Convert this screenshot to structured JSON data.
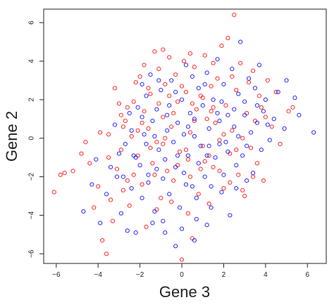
{
  "chart_data": {
    "type": "scatter",
    "xlabel": "Gene 3",
    "ylabel": "Gene 2",
    "xlim": [
      -6.6,
      6.9
    ],
    "ylim": [
      -6.5,
      6.7
    ],
    "x_ticks": [
      -6,
      -4,
      -2,
      0,
      2,
      4,
      6
    ],
    "y_ticks": [
      -6,
      -4,
      -2,
      0,
      2,
      4,
      6
    ],
    "x_tick_labels": [
      "−6",
      "−4",
      "−2",
      "0",
      "2",
      "4",
      "6"
    ],
    "y_tick_labels": [
      "−6",
      "−4",
      "−2",
      "0",
      "2",
      "4",
      "6"
    ],
    "grid": false,
    "legend": "none",
    "marker": "open-circle",
    "series": [
      {
        "color": "#ff2a2a",
        "points": [
          [
            -6.1,
            -2.8
          ],
          [
            -5.8,
            -1.9
          ],
          [
            -5.6,
            -1.8
          ],
          [
            -5.2,
            -1.7
          ],
          [
            -4.8,
            -0.8
          ],
          [
            -4.6,
            -0.2
          ],
          [
            -4.4,
            -1.3
          ],
          [
            -4.2,
            -3.6
          ],
          [
            -4.0,
            -2.5
          ],
          [
            -3.9,
            0.3
          ],
          [
            -3.8,
            -5.3
          ],
          [
            -3.6,
            -6.0
          ],
          [
            -3.5,
            -1.0
          ],
          [
            -3.4,
            -3.2
          ],
          [
            -3.3,
            -4.3
          ],
          [
            -3.2,
            2.6
          ],
          [
            -3.1,
            -1.6
          ],
          [
            -3.0,
            1.8
          ],
          [
            -2.9,
            -0.6
          ],
          [
            -2.8,
            -2.7
          ],
          [
            -2.7,
            0.9
          ],
          [
            -2.6,
            1.6
          ],
          [
            -2.5,
            -3.5
          ],
          [
            -2.4,
            0.1
          ],
          [
            -2.3,
            -1.9
          ],
          [
            -2.2,
            2.9
          ],
          [
            -2.1,
            -0.9
          ],
          [
            -2.0,
            3.2
          ],
          [
            -1.9,
            -2.4
          ],
          [
            -1.8,
            1.4
          ],
          [
            -1.7,
            -4.6
          ],
          [
            -1.6,
            0.5
          ],
          [
            -1.5,
            2.3
          ],
          [
            -1.4,
            -1.3
          ],
          [
            -1.3,
            4.5
          ],
          [
            -1.2,
            -0.2
          ],
          [
            -1.1,
            3.6
          ],
          [
            -1.0,
            -3.1
          ],
          [
            -0.9,
            1.1
          ],
          [
            -0.8,
            2.8
          ],
          [
            -0.7,
            -1.7
          ],
          [
            -0.6,
            4.2
          ],
          [
            -0.5,
            0.6
          ],
          [
            -0.4,
            -2.2
          ],
          [
            -0.3,
            3.3
          ],
          [
            -0.2,
            1.9
          ],
          [
            -0.1,
            -0.7
          ],
          [
            0.0,
            -6.3
          ],
          [
            0.1,
            4.0
          ],
          [
            0.2,
            2.4
          ],
          [
            0.3,
            -1.1
          ],
          [
            0.4,
            0.3
          ],
          [
            0.5,
            -5.2
          ],
          [
            0.6,
            3.7
          ],
          [
            0.7,
            1.5
          ],
          [
            0.8,
            -2.9
          ],
          [
            0.9,
            2.2
          ],
          [
            1.0,
            -0.4
          ],
          [
            1.1,
            4.3
          ],
          [
            1.2,
            1.0
          ],
          [
            1.3,
            -3.4
          ],
          [
            1.4,
            2.7
          ],
          [
            1.5,
            -1.5
          ],
          [
            1.6,
            0.8
          ],
          [
            1.7,
            3.1
          ],
          [
            1.8,
            -0.1
          ],
          [
            1.9,
            4.8
          ],
          [
            2.0,
            -2.6
          ],
          [
            2.1,
            1.7
          ],
          [
            2.2,
            5.2
          ],
          [
            2.3,
            -0.8
          ],
          [
            2.4,
            0.4
          ],
          [
            2.5,
            6.4
          ],
          [
            2.6,
            2.5
          ],
          [
            2.7,
            -1.9
          ],
          [
            2.8,
            3.9
          ],
          [
            2.9,
            0.0
          ],
          [
            3.0,
            -3.0
          ],
          [
            3.1,
            1.3
          ],
          [
            3.2,
            2.9
          ],
          [
            3.3,
            -0.5
          ],
          [
            3.4,
            3.5
          ],
          [
            3.5,
            0.9
          ],
          [
            3.6,
            -1.3
          ],
          [
            3.7,
            2.2
          ],
          [
            3.8,
            1.6
          ],
          [
            3.9,
            -2.2
          ],
          [
            4.0,
            1.1
          ],
          [
            4.1,
            3.0
          ],
          [
            4.3,
            0.6
          ],
          [
            4.5,
            2.4
          ],
          [
            4.7,
            -0.3
          ],
          [
            5.1,
            1.4
          ],
          [
            5.3,
            1.6
          ],
          [
            -2.6,
            -2.2
          ],
          [
            -1.9,
            0.8
          ],
          [
            -1.3,
            -1.9
          ],
          [
            -0.9,
            -0.3
          ],
          [
            -0.4,
            1.3
          ],
          [
            0.2,
            -0.6
          ],
          [
            0.6,
            0.9
          ],
          [
            1.1,
            -1.2
          ],
          [
            1.5,
            1.6
          ],
          [
            2.0,
            0.2
          ],
          [
            2.6,
            -0.6
          ],
          [
            -2.9,
            1.2
          ],
          [
            -2.3,
            1.9
          ],
          [
            -1.6,
            2.6
          ],
          [
            -1.1,
            1.8
          ],
          [
            -0.6,
            2.2
          ],
          [
            0.0,
            2.7
          ],
          [
            0.5,
            1.8
          ],
          [
            1.0,
            2.1
          ],
          [
            1.4,
            1.4
          ],
          [
            -3.5,
            0.2
          ],
          [
            -2.8,
            0.6
          ],
          [
            -2.1,
            0.4
          ],
          [
            -1.5,
            -0.5
          ],
          [
            -0.8,
            0.0
          ],
          [
            -0.2,
            -1.4
          ],
          [
            0.4,
            -2.0
          ],
          [
            0.9,
            -1.6
          ],
          [
            1.3,
            -0.9
          ],
          [
            1.8,
            -1.7
          ],
          [
            2.3,
            -2.3
          ],
          [
            2.9,
            -2.7
          ],
          [
            3.4,
            -2.0
          ],
          [
            -1.2,
            -3.7
          ],
          [
            -0.5,
            -3.3
          ],
          [
            0.3,
            -3.9
          ],
          [
            -1.8,
            3.8
          ],
          [
            -0.9,
            4.6
          ],
          [
            0.4,
            4.4
          ],
          [
            1.5,
            3.9
          ],
          [
            2.4,
            3.2
          ]
        ]
      },
      {
        "color": "#2a2aff",
        "points": [
          [
            -4.7,
            -3.8
          ],
          [
            -4.3,
            -2.4
          ],
          [
            -4.1,
            -1.1
          ],
          [
            -3.9,
            -4.4
          ],
          [
            -3.6,
            -2.9
          ],
          [
            -3.4,
            -1.5
          ],
          [
            -3.2,
            0.7
          ],
          [
            -3.1,
            -2.0
          ],
          [
            -2.9,
            -3.9
          ],
          [
            -2.7,
            -0.3
          ],
          [
            -2.6,
            -4.8
          ],
          [
            -2.5,
            1.3
          ],
          [
            -2.4,
            -2.6
          ],
          [
            -2.3,
            -0.9
          ],
          [
            -2.2,
            -4.9
          ],
          [
            -2.1,
            1.6
          ],
          [
            -2.0,
            -1.4
          ],
          [
            -1.9,
            -3.1
          ],
          [
            -1.8,
            0.2
          ],
          [
            -1.7,
            2.2
          ],
          [
            -1.6,
            -2.3
          ],
          [
            -1.5,
            3.3
          ],
          [
            -1.4,
            0.9
          ],
          [
            -1.3,
            -3.8
          ],
          [
            -1.2,
            1.5
          ],
          [
            -1.1,
            -0.6
          ],
          [
            -1.0,
            2.5
          ],
          [
            -0.9,
            -4.3
          ],
          [
            -0.8,
            -1.1
          ],
          [
            -0.7,
            1.2
          ],
          [
            -0.6,
            -2.9
          ],
          [
            -0.5,
            3.0
          ],
          [
            -0.4,
            -0.2
          ],
          [
            -0.3,
            -5.6
          ],
          [
            -0.2,
            0.8
          ],
          [
            -0.1,
            -3.6
          ],
          [
            0.0,
            2.0
          ],
          [
            0.1,
            -1.8
          ],
          [
            0.2,
            3.8
          ],
          [
            0.3,
            -0.9
          ],
          [
            0.4,
            1.3
          ],
          [
            0.5,
            -2.5
          ],
          [
            0.6,
            0.1
          ],
          [
            0.7,
            -4.2
          ],
          [
            0.8,
            2.6
          ],
          [
            0.9,
            -0.4
          ],
          [
            1.0,
            1.7
          ],
          [
            1.1,
            -2.0
          ],
          [
            1.2,
            3.4
          ],
          [
            1.3,
            0.5
          ],
          [
            1.4,
            -3.6
          ],
          [
            1.5,
            2.0
          ],
          [
            1.6,
            -1.0
          ],
          [
            1.7,
            4.1
          ],
          [
            1.8,
            0.9
          ],
          [
            1.9,
            -2.8
          ],
          [
            2.0,
            2.8
          ],
          [
            2.1,
            -0.2
          ],
          [
            2.2,
            1.2
          ],
          [
            2.3,
            -4.0
          ],
          [
            2.4,
            3.6
          ],
          [
            2.5,
            0.6
          ],
          [
            2.6,
            -1.4
          ],
          [
            2.7,
            2.3
          ],
          [
            2.8,
            5.0
          ],
          [
            2.9,
            -0.9
          ],
          [
            3.0,
            1.9
          ],
          [
            3.1,
            -2.2
          ],
          [
            3.2,
            3.1
          ],
          [
            3.3,
            0.3
          ],
          [
            3.4,
            -1.8
          ],
          [
            3.5,
            2.6
          ],
          [
            3.6,
            0.8
          ],
          [
            3.7,
            3.8
          ],
          [
            3.8,
            -0.6
          ],
          [
            3.9,
            1.4
          ],
          [
            4.0,
            2.0
          ],
          [
            4.2,
            -0.1
          ],
          [
            4.4,
            1.0
          ],
          [
            4.6,
            2.4
          ],
          [
            4.9,
            0.5
          ],
          [
            5.0,
            3.0
          ],
          [
            5.4,
            2.1
          ],
          [
            5.6,
            1.2
          ],
          [
            6.3,
            0.3
          ],
          [
            -2.8,
            -2.0
          ],
          [
            -2.2,
            -1.0
          ],
          [
            -1.7,
            -0.3
          ],
          [
            -1.2,
            -1.6
          ],
          [
            -0.7,
            0.4
          ],
          [
            -0.2,
            -0.9
          ],
          [
            0.3,
            0.6
          ],
          [
            0.8,
            -1.3
          ],
          [
            1.3,
            -0.4
          ],
          [
            1.7,
            1.3
          ],
          [
            2.2,
            -0.7
          ],
          [
            2.7,
            0.1
          ],
          [
            3.1,
            -0.4
          ],
          [
            -1.9,
            1.1
          ],
          [
            -1.3,
            0.1
          ],
          [
            -0.6,
            1.7
          ],
          [
            0.1,
            0.2
          ],
          [
            0.6,
            1.0
          ],
          [
            1.2,
            -0.9
          ],
          [
            1.8,
            -0.3
          ],
          [
            -3.0,
            -0.8
          ],
          [
            -2.4,
            0.4
          ],
          [
            -1.6,
            -1.9
          ],
          [
            -0.9,
            -2.1
          ],
          [
            -0.3,
            -1.5
          ],
          [
            0.2,
            -2.4
          ],
          [
            0.7,
            -3.1
          ],
          [
            1.4,
            -2.5
          ],
          [
            2.0,
            -1.9
          ],
          [
            2.6,
            -2.6
          ],
          [
            -1.4,
            -4.4
          ],
          [
            -0.8,
            -4.9
          ],
          [
            0.0,
            -4.7
          ],
          [
            0.6,
            -5.3
          ],
          [
            1.2,
            -4.5
          ],
          [
            -1.9,
            2.8
          ],
          [
            -1.1,
            3.0
          ],
          [
            -0.3,
            2.4
          ],
          [
            0.5,
            3.2
          ],
          [
            1.1,
            2.8
          ],
          [
            1.9,
            1.9
          ],
          [
            2.5,
            1.5
          ],
          [
            3.0,
            1.2
          ],
          [
            3.6,
            1.7
          ],
          [
            4.1,
            0.7
          ]
        ]
      }
    ]
  }
}
